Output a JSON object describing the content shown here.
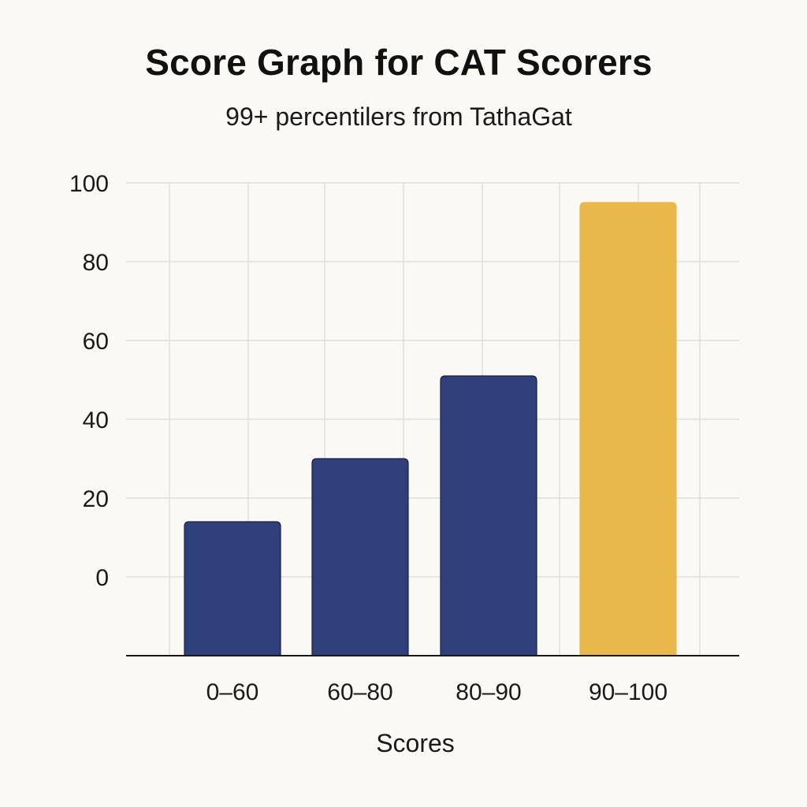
{
  "chart_data": {
    "type": "bar",
    "title": "Score Graph for CAT Scorers",
    "subtitle": "99+ percentilers from TathaGat",
    "xlabel": "Scores",
    "ylabel": "",
    "categories": [
      "0–60",
      "60–80",
      "80–90",
      "90–100"
    ],
    "values": [
      14,
      30,
      51,
      95
    ],
    "bar_colors": [
      "#2f3f7a",
      "#2f3f7a",
      "#2f3f7a",
      "#e8b84a"
    ],
    "ylim": [
      -20,
      100
    ],
    "yticks": [
      0,
      20,
      40,
      60,
      80,
      100
    ],
    "ytick_labels": [
      "0",
      "20",
      "40",
      "60",
      "80",
      "100"
    ],
    "grid": true,
    "legend": "none"
  },
  "colors": {
    "background": "#faf9f5",
    "grid": "#d9d9d9",
    "axis": "#1a1a1a",
    "bar_edge": "#1a1f40"
  }
}
